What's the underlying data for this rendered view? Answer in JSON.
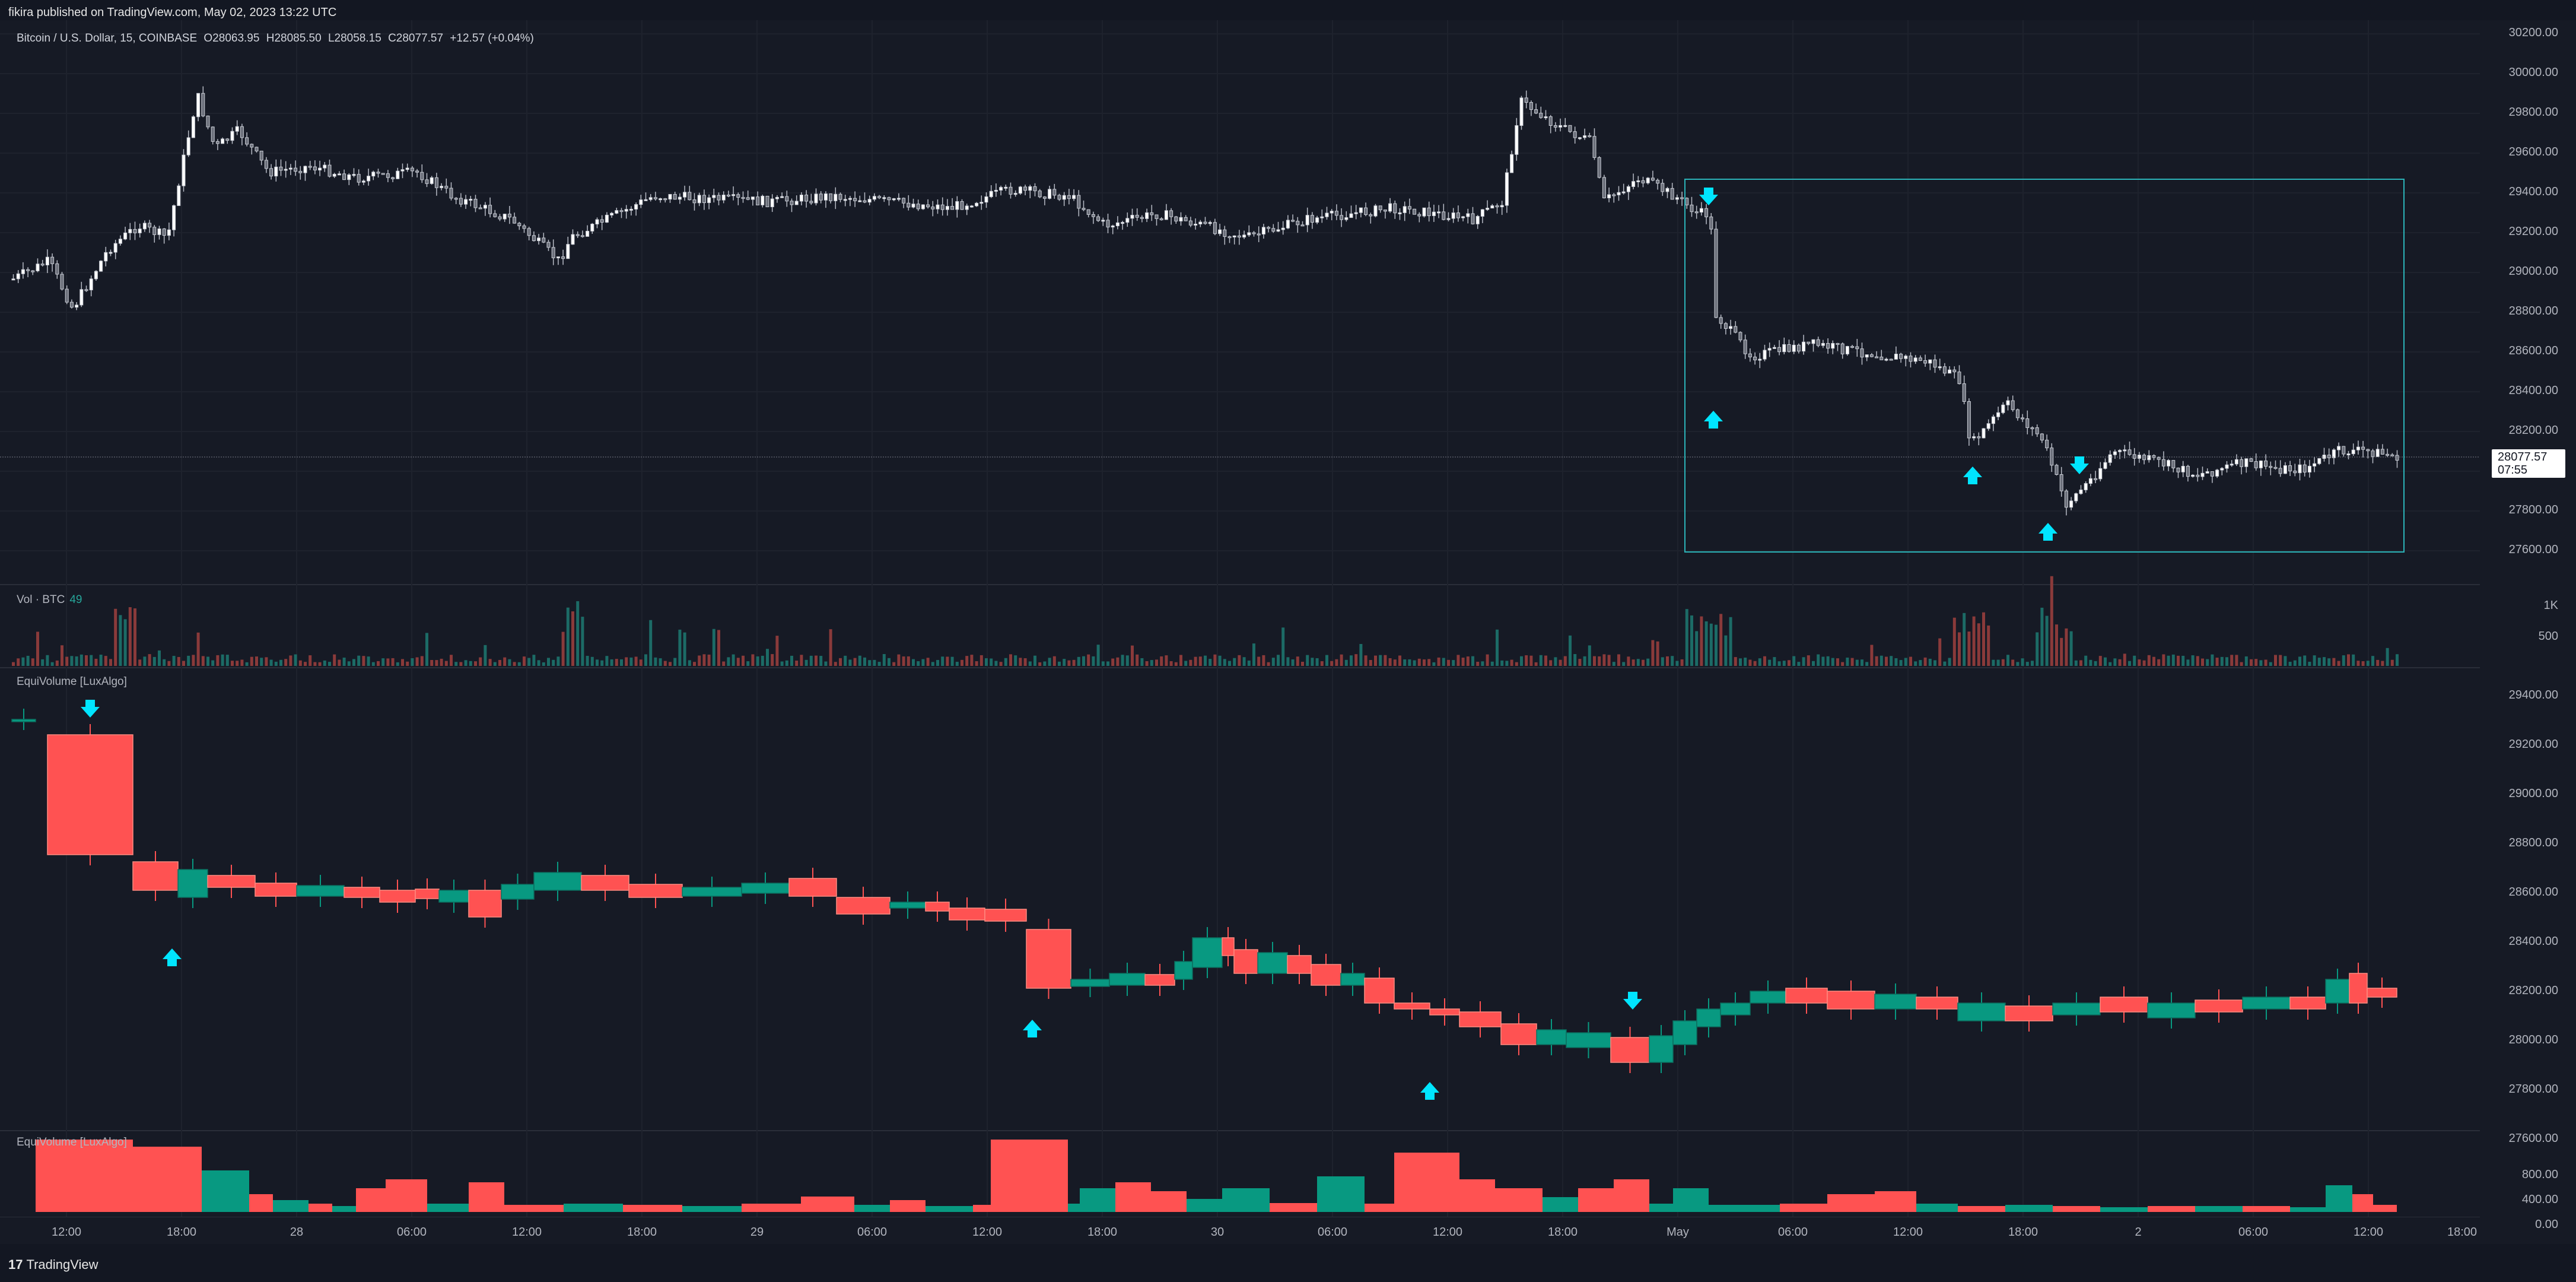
{
  "header": {
    "published": "fikira published on TradingView.com, May 02, 2023 13:22 UTC"
  },
  "symbol": {
    "name": "Bitcoin / U.S. Dollar, 15, COINBASE",
    "open": "O28063.95",
    "high": "H28085.50",
    "low": "L28058.15",
    "close": "C28077.57",
    "change": "+12.57 (+0.04%)"
  },
  "price_label": {
    "value": "28077.57",
    "countdown": "07:55"
  },
  "panes": {
    "volume_label": "Vol · BTC",
    "volume_value": "49",
    "equivolume_label": "EquiVolume [LuxAlgo]",
    "equivolume_bars_label": "EquiVolume [LuxAlgo]"
  },
  "y_axis_main": [
    "30200.00",
    "30000.00",
    "29800.00",
    "29600.00",
    "29400.00",
    "29200.00",
    "29000.00",
    "28800.00",
    "28600.00",
    "28400.00",
    "28200.00",
    "27800.00",
    "27600.00"
  ],
  "y_axis_volume": [
    "1K",
    "500"
  ],
  "y_axis_equi": [
    "29400.00",
    "29200.00",
    "29000.00",
    "28800.00",
    "28600.00",
    "28400.00",
    "28200.00",
    "28000.00",
    "27800.00",
    "27600.00"
  ],
  "y_axis_equi_bars": [
    "800.00",
    "400.00",
    "0.00"
  ],
  "x_axis": [
    "12:00",
    "18:00",
    "28",
    "06:00",
    "12:00",
    "18:00",
    "29",
    "06:00",
    "12:00",
    "18:00",
    "30",
    "06:00",
    "12:00",
    "18:00",
    "May",
    "06:00",
    "12:00",
    "18:00",
    "2",
    "06:00",
    "12:00",
    "18:00"
  ],
  "footer": {
    "brand": "TradingView",
    "logo_mark": "17"
  },
  "colors": {
    "background": "#161a25",
    "up": "#26a69a",
    "down": "#ef5350",
    "equi_down": "#ff5252",
    "equi_up": "#089981",
    "arrow": "#00e5ff",
    "box": "#2bb3b8"
  },
  "icons": [
    "tradingview-logo-icon",
    "arrow-up-icon",
    "arrow-down-icon"
  ]
}
